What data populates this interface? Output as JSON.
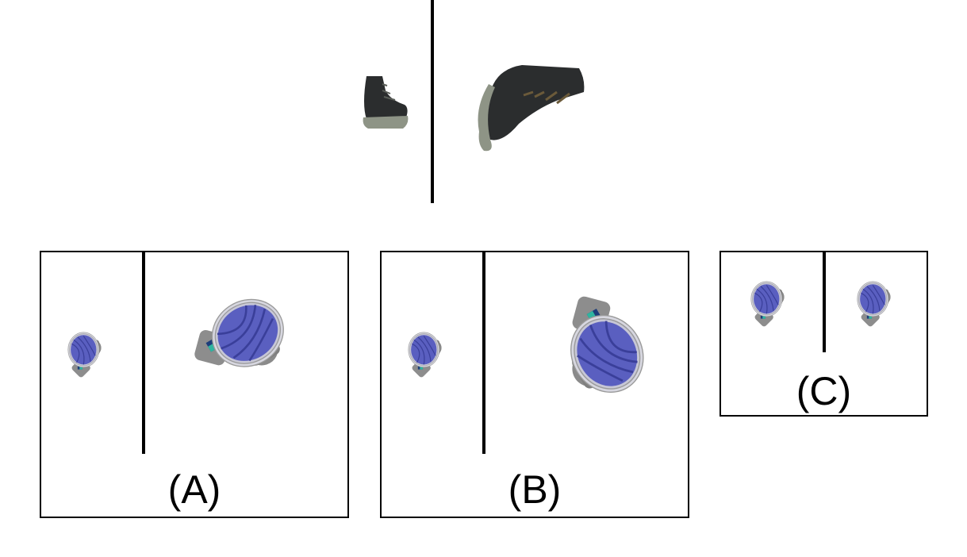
{
  "example": {
    "left_object_icon": "boot-small-icon",
    "right_object_icon": "boot-large-rotated-icon"
  },
  "options": [
    {
      "label": "(A)",
      "left_icon": "fan-small-icon",
      "right_icon": "fan-large-rotated-icon"
    },
    {
      "label": "(B)",
      "left_icon": "fan-small-icon",
      "right_icon": "fan-large-rotated-icon"
    },
    {
      "label": "(C)",
      "left_icon": "fan-small-icon",
      "right_icon": "fan-small-icon"
    }
  ],
  "colors": {
    "boot": "#2b2d2e",
    "sole": "#8e9486",
    "fan_body": "#9a9a9a",
    "fan_blades": "#4a4fb0",
    "fan_accent": "#2a7fa0"
  }
}
